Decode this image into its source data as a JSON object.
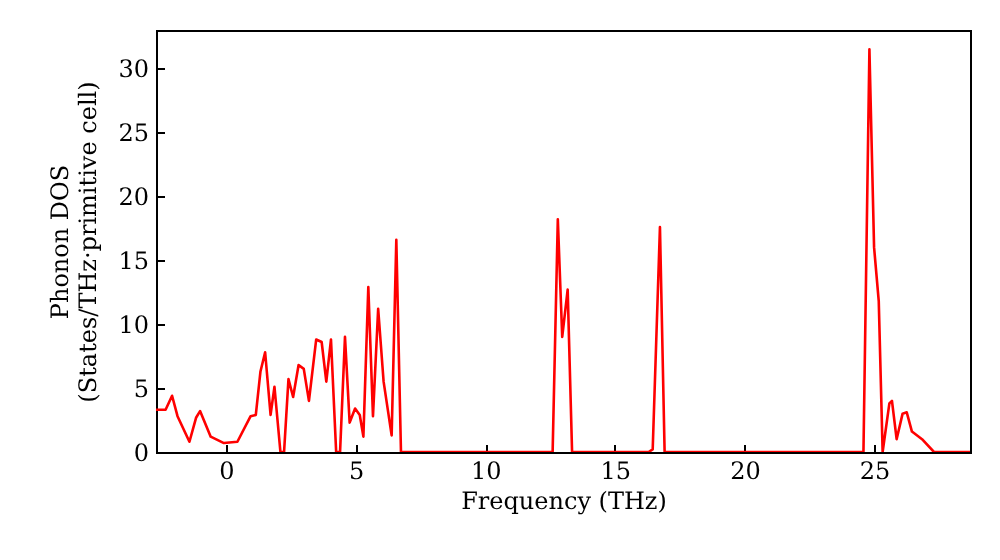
{
  "chart_data": {
    "type": "line",
    "xlabel": "Frequency (THz)",
    "ylabel": "Phonon DOS\n(States/THz·primitive cell)",
    "xlim": [
      -2.7,
      28.7
    ],
    "ylim": [
      0,
      33
    ],
    "xticks": [
      0,
      5,
      10,
      15,
      20,
      25
    ],
    "yticks": [
      0,
      5,
      10,
      15,
      20,
      25,
      30
    ],
    "grid": false,
    "marker": "none",
    "line_style": "solid",
    "series": [
      {
        "color": "#ff0000",
        "x": [
          -2.7,
          -2.59,
          -2.33,
          -2.08,
          -1.87,
          -1.41,
          -1.15,
          -1.0,
          -0.59,
          -0.08,
          0.44,
          0.95,
          1.15,
          1.33,
          1.51,
          1.72,
          1.87,
          2.1,
          2.24,
          2.41,
          2.59,
          2.8,
          3.0,
          3.2,
          3.48,
          3.69,
          3.87,
          4.05,
          4.25,
          4.4,
          4.59,
          4.77,
          4.98,
          5.16,
          5.3,
          5.49,
          5.67,
          5.87,
          6.08,
          6.39,
          6.57,
          6.75,
          12.6,
          12.8,
          12.97,
          13.18,
          13.35,
          16.3,
          16.46,
          16.74,
          16.92,
          24.59,
          24.82,
          25.0,
          25.18,
          25.33,
          25.59,
          25.69,
          25.87,
          26.1,
          26.26,
          26.46,
          26.85,
          27.31,
          28.7
        ],
        "values": [
          3.3,
          3.3,
          3.3,
          4.4,
          2.8,
          0.8,
          2.7,
          3.2,
          1.2,
          0.7,
          0.8,
          2.8,
          2.9,
          6.3,
          7.8,
          2.9,
          5.1,
          0,
          0,
          5.7,
          4.3,
          6.8,
          6.5,
          4.0,
          8.8,
          8.6,
          5.5,
          8.8,
          0,
          0,
          9.0,
          2.3,
          3.4,
          2.9,
          1.2,
          12.9,
          2.8,
          11.2,
          5.5,
          1.3,
          16.6,
          0,
          0,
          18.2,
          9.0,
          12.7,
          0,
          0,
          0.2,
          17.6,
          0,
          0,
          31.5,
          16.0,
          11.8,
          0,
          3.8,
          4.0,
          1.0,
          3.0,
          3.1,
          1.6,
          1.0,
          0,
          0
        ]
      }
    ]
  }
}
